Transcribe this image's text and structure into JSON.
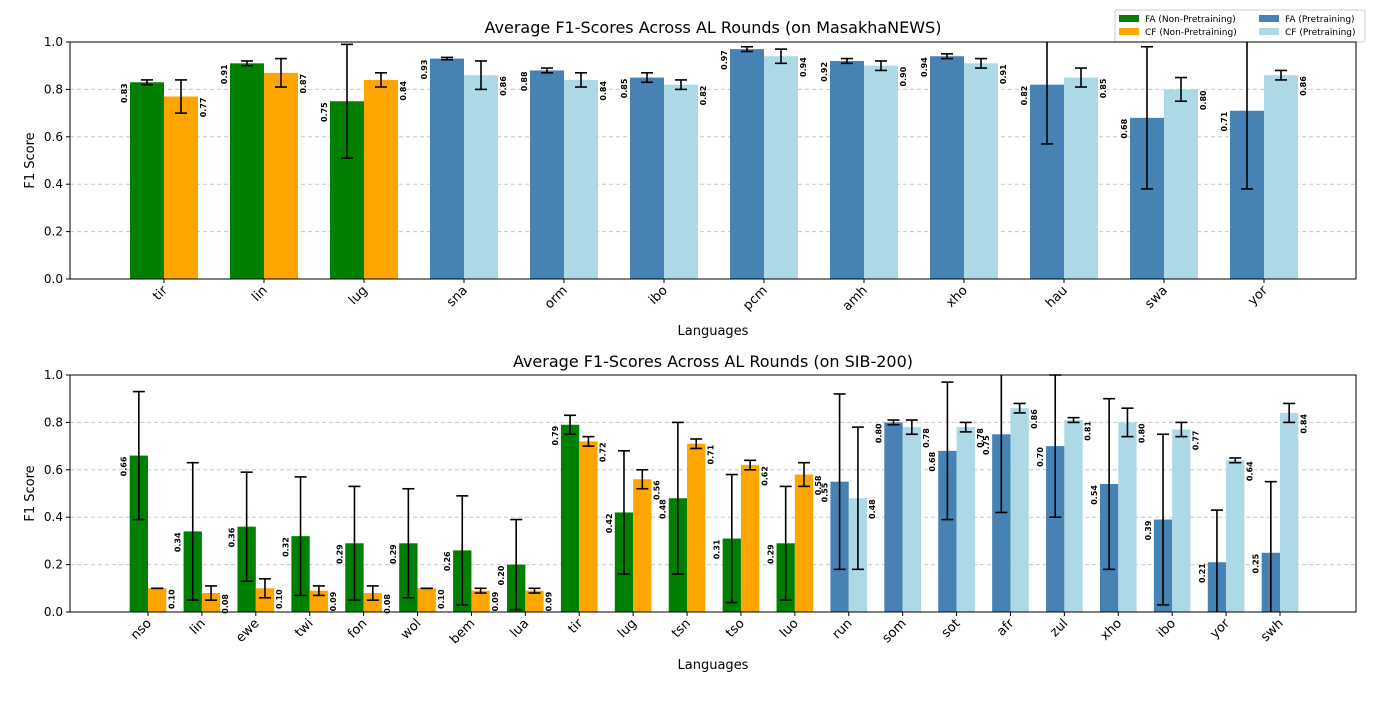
{
  "legend": {
    "placement": "top-right",
    "entries": [
      {
        "label": "FA (Non-Pretraining)",
        "color": "#008000"
      },
      {
        "label": "CF (Non-Pretraining)",
        "color": "#ffa500"
      },
      {
        "label": "FA (Pretraining)",
        "color": "#4682b4"
      },
      {
        "label": "CF (Pretraining)",
        "color": "#add8e6"
      }
    ]
  },
  "chart_data": [
    {
      "type": "bar",
      "title": "Average F1-Scores Across AL Rounds (on MasakhaNEWS)",
      "xlabel": "Languages",
      "ylabel": "F1 Score",
      "ylim": [
        0,
        1
      ],
      "yticks": [
        "0.0",
        "0.2",
        "0.4",
        "0.6",
        "0.8",
        "1.0"
      ],
      "grid": "y dashed",
      "categories": [
        "tir",
        "lin",
        "lug",
        "sna",
        "orm",
        "ibo",
        "pcm",
        "amh",
        "xho",
        "hau",
        "swa",
        "yor"
      ],
      "pretraining": [
        false,
        false,
        false,
        true,
        true,
        true,
        true,
        true,
        true,
        true,
        true,
        true
      ],
      "series": [
        {
          "name": "FA",
          "values": [
            0.83,
            0.91,
            0.75,
            0.93,
            0.88,
            0.85,
            0.97,
            0.92,
            0.94,
            0.82,
            0.68,
            0.71
          ],
          "errors": [
            0.01,
            0.01,
            0.24,
            0.005,
            0.01,
            0.02,
            0.01,
            0.01,
            0.01,
            0.25,
            0.3,
            0.33
          ]
        },
        {
          "name": "CF",
          "values": [
            0.77,
            0.87,
            0.84,
            0.86,
            0.84,
            0.82,
            0.94,
            0.9,
            0.91,
            0.85,
            0.8,
            0.86
          ],
          "errors": [
            0.07,
            0.06,
            0.03,
            0.06,
            0.03,
            0.02,
            0.03,
            0.02,
            0.02,
            0.04,
            0.05,
            0.02
          ]
        }
      ]
    },
    {
      "type": "bar",
      "title": "Average F1-Scores Across AL Rounds (on SIB-200)",
      "xlabel": "Languages",
      "ylabel": "F1 Score",
      "ylim": [
        0,
        1
      ],
      "yticks": [
        "0.0",
        "0.2",
        "0.4",
        "0.6",
        "0.8",
        "1.0"
      ],
      "grid": "y dashed",
      "categories": [
        "nso",
        "lin",
        "ewe",
        "twi",
        "fon",
        "wol",
        "bem",
        "lua",
        "tir",
        "lug",
        "tsn",
        "tso",
        "luo",
        "run",
        "som",
        "sot",
        "afr",
        "zul",
        "xho",
        "ibo",
        "yor",
        "swh"
      ],
      "pretraining": [
        false,
        false,
        false,
        false,
        false,
        false,
        false,
        false,
        false,
        false,
        false,
        false,
        false,
        true,
        true,
        true,
        true,
        true,
        true,
        true,
        true,
        true
      ],
      "series": [
        {
          "name": "FA",
          "values": [
            0.66,
            0.34,
            0.36,
            0.32,
            0.29,
            0.29,
            0.26,
            0.2,
            0.79,
            0.42,
            0.48,
            0.31,
            0.29,
            0.55,
            0.8,
            0.68,
            0.75,
            0.7,
            0.54,
            0.39,
            0.21,
            0.25
          ],
          "errors": [
            0.27,
            0.29,
            0.23,
            0.25,
            0.24,
            0.23,
            0.23,
            0.19,
            0.04,
            0.26,
            0.32,
            0.27,
            0.24,
            0.37,
            0.01,
            0.29,
            0.33,
            0.3,
            0.36,
            0.36,
            0.22,
            0.3
          ]
        },
        {
          "name": "CF",
          "values": [
            0.1,
            0.08,
            0.1,
            0.09,
            0.08,
            0.1,
            0.09,
            0.09,
            0.72,
            0.56,
            0.71,
            0.62,
            0.58,
            0.48,
            0.78,
            0.78,
            0.86,
            0.81,
            0.8,
            0.77,
            0.64,
            0.84
          ],
          "errors": [
            0.0,
            0.03,
            0.04,
            0.02,
            0.03,
            0.0,
            0.01,
            0.01,
            0.02,
            0.04,
            0.02,
            0.02,
            0.05,
            0.3,
            0.03,
            0.02,
            0.02,
            0.01,
            0.06,
            0.03,
            0.01,
            0.04
          ]
        }
      ]
    }
  ]
}
